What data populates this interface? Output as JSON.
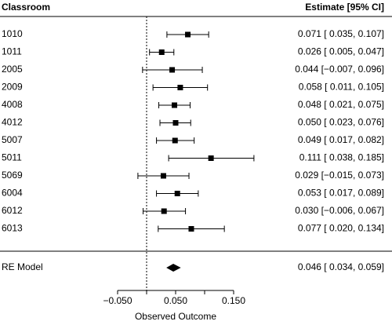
{
  "chart_data": {
    "type": "forest",
    "column_headers": [
      "Classroom",
      "Estimate [95% CI]"
    ],
    "categories": [
      "1010",
      "1011",
      "2005",
      "2009",
      "4008",
      "4012",
      "5007",
      "5011",
      "5069",
      "6004",
      "6012",
      "6013"
    ],
    "values": [
      0.071,
      0.026,
      0.044,
      0.058,
      0.048,
      0.05,
      0.049,
      0.111,
      0.029,
      0.053,
      0.03,
      0.077
    ],
    "lower": [
      0.035,
      0.005,
      -0.007,
      0.011,
      0.021,
      0.023,
      0.017,
      0.038,
      -0.015,
      0.017,
      -0.006,
      0.02
    ],
    "upper": [
      0.107,
      0.047,
      0.096,
      0.105,
      0.075,
      0.076,
      0.082,
      0.185,
      0.073,
      0.089,
      0.067,
      0.134
    ],
    "value_labels": [
      "0.071 [ 0.035, 0.107]",
      "0.026 [ 0.005, 0.047]",
      "0.044 [−0.007, 0.096]",
      "0.058 [ 0.011, 0.105]",
      "0.048 [ 0.021, 0.075]",
      "0.050 [ 0.023, 0.076]",
      "0.049 [ 0.017, 0.082]",
      "0.111 [ 0.038, 0.185]",
      "0.029 [−0.015, 0.073]",
      "0.053 [ 0.017, 0.089]",
      "0.030 [−0.006, 0.067]",
      "0.077 [ 0.020, 0.134]"
    ],
    "summary": {
      "label": "RE Model",
      "value": 0.046,
      "lower": 0.034,
      "upper": 0.059,
      "value_label": "0.046 [ 0.034, 0.059]"
    },
    "refline": 0,
    "xlim": [
      -0.05,
      0.15
    ],
    "xticks": [
      {
        "value": -0.05,
        "label": "−0.050"
      },
      {
        "value": 0.05,
        "label": "0.050"
      },
      {
        "value": 0.15,
        "label": "0.150"
      }
    ],
    "xminor_ticks": [
      0,
      0.1
    ],
    "x_label": "Observed Outcome",
    "color": "#000000"
  }
}
